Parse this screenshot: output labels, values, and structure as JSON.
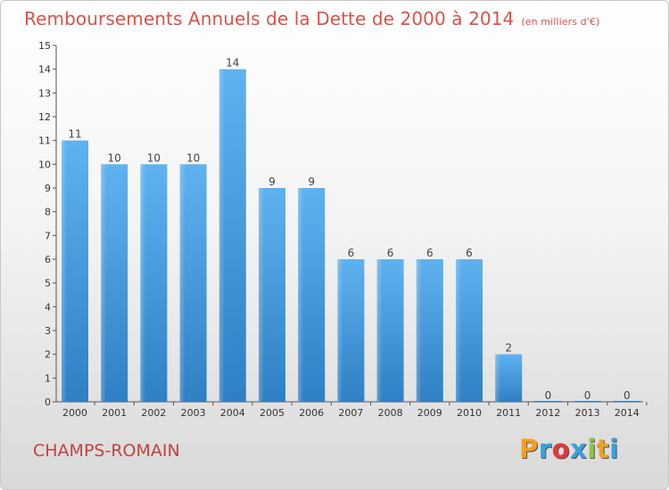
{
  "header": {
    "title": "Remboursements Annuels de la Dette de 2000 à 2014",
    "subtitle": "(en milliers d'€)"
  },
  "footer": {
    "commune": "CHAMPS-ROMAIN",
    "logo_letters": [
      "P",
      "r",
      "o",
      "x",
      "i",
      "t",
      "i"
    ],
    "logo_colors": [
      "#f0a020",
      "#3aa0e0",
      "#e03a3a",
      "#3aa0e0",
      "#8cc63f",
      "#f0a020",
      "#3aa0e0"
    ]
  },
  "chart_data": {
    "type": "bar",
    "title": "Remboursements Annuels de la Dette de 2000 à 2014",
    "categories": [
      "2000",
      "2001",
      "2002",
      "2003",
      "2004",
      "2005",
      "2006",
      "2007",
      "2008",
      "2009",
      "2010",
      "2011",
      "2012",
      "2013",
      "2014"
    ],
    "values": [
      11,
      10,
      10,
      10,
      14,
      9,
      9,
      6,
      6,
      6,
      6,
      2,
      0,
      0,
      0
    ],
    "ylim": [
      0,
      15
    ],
    "yticks": [
      0,
      1,
      2,
      3,
      4,
      5,
      6,
      7,
      8,
      9,
      10,
      11,
      12,
      13,
      14,
      15
    ],
    "grid": false,
    "bar_color": "#4fa3e6"
  }
}
